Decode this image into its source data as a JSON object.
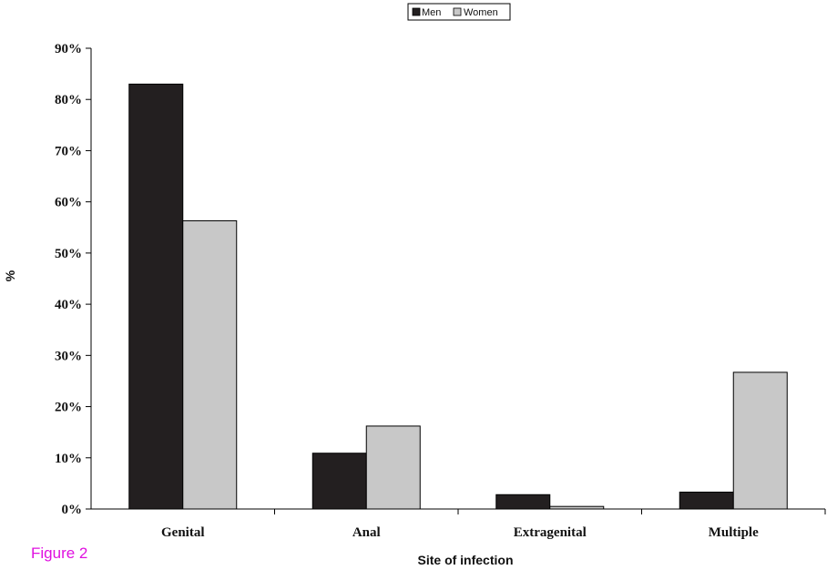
{
  "caption": "Figure 2",
  "chart_data": {
    "type": "bar",
    "categories": [
      "Genital",
      "Anal",
      "Extragenital",
      "Multiple"
    ],
    "series": [
      {
        "name": "Men",
        "color": "#231f20",
        "values": [
          83.0,
          10.9,
          2.8,
          3.3
        ]
      },
      {
        "name": "Women",
        "color": "#c8c8c8",
        "values": [
          56.3,
          16.2,
          0.5,
          26.7
        ]
      }
    ],
    "ylim": [
      0,
      90
    ],
    "yticks": [
      0,
      10,
      20,
      30,
      40,
      50,
      60,
      70,
      80,
      90
    ],
    "ytick_labels": [
      "0%",
      "10%",
      "20%",
      "30%",
      "40%",
      "50%",
      "60%",
      "70%",
      "80%",
      "90%"
    ],
    "xlabel": "Site of infection",
    "ylabel": "%",
    "legend_position": "top-center",
    "grid": false
  }
}
